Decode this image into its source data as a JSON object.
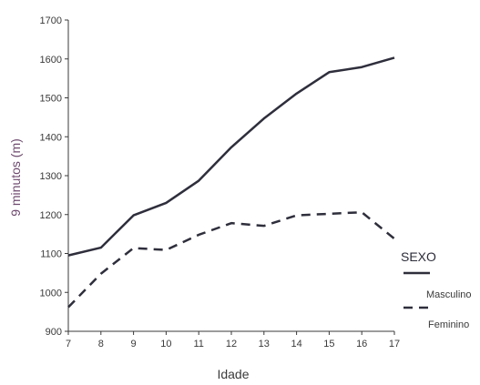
{
  "chart_data": {
    "type": "line",
    "title": "",
    "xlabel": "Idade",
    "ylabel": "9 minutos (m)",
    "x": [
      7,
      8,
      9,
      10,
      11,
      12,
      13,
      14,
      15,
      16,
      17
    ],
    "xlim": [
      7,
      17
    ],
    "ylim": [
      900,
      1700
    ],
    "yticks": [
      900,
      1000,
      1100,
      1200,
      1300,
      1400,
      1500,
      1600,
      1700
    ],
    "grid": false,
    "legend": {
      "title": "SEXO",
      "placement": "right"
    },
    "series": [
      {
        "name": "Masculino",
        "style": "solid",
        "color": "#2e2e3c",
        "values": [
          1095,
          1115,
          1198,
          1230,
          1287,
          1373,
          1447,
          1511,
          1566,
          1579,
          1603
        ]
      },
      {
        "name": "Feminino",
        "style": "dashed",
        "color": "#2e2e3c",
        "values": [
          962,
          1048,
          1114,
          1109,
          1148,
          1178,
          1171,
          1198,
          1202,
          1206,
          1138
        ]
      }
    ]
  }
}
